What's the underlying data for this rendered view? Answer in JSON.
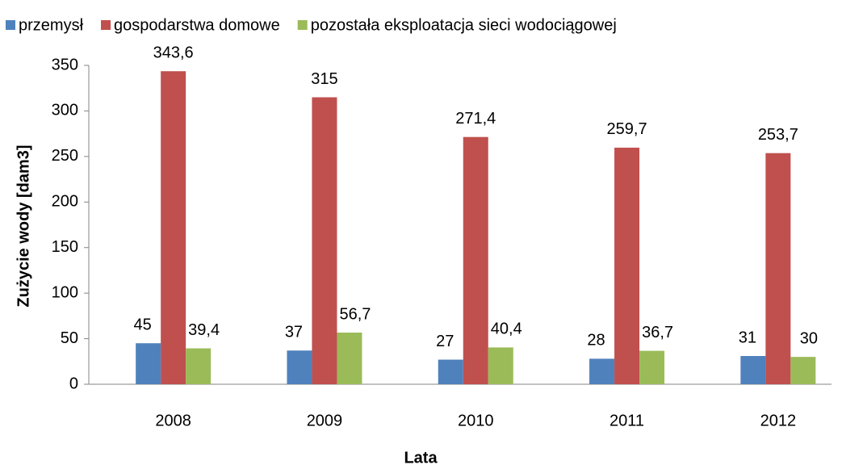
{
  "chart_data": {
    "type": "bar",
    "x_label": "Lata",
    "y_label": "Zużycie wody [dam3]",
    "categories": [
      "2008",
      "2009",
      "2010",
      "2011",
      "2012"
    ],
    "series": [
      {
        "name": "przemysł",
        "color": "#4f81bd",
        "values": [
          45,
          37,
          27,
          28,
          31
        ]
      },
      {
        "name": "gospodarstwa domowe",
        "color": "#c0504d",
        "values": [
          343.6,
          315,
          271.4,
          259.7,
          253.7
        ],
        "value_labels": [
          "343,6",
          "315",
          "271,4",
          "259,7",
          "253,7"
        ]
      },
      {
        "name": "pozostała eksploatacja sieci wodociągowej",
        "color": "#9bbb59",
        "values": [
          39.4,
          56.7,
          40.4,
          36.7,
          30
        ],
        "value_labels": [
          "39,4",
          "56,7",
          "40,4",
          "36,7",
          "30"
        ]
      }
    ],
    "ylim": [
      0,
      350
    ],
    "yticks": [
      0,
      50,
      100,
      150,
      200,
      250,
      300,
      350
    ],
    "legend": "top",
    "grid": false
  }
}
